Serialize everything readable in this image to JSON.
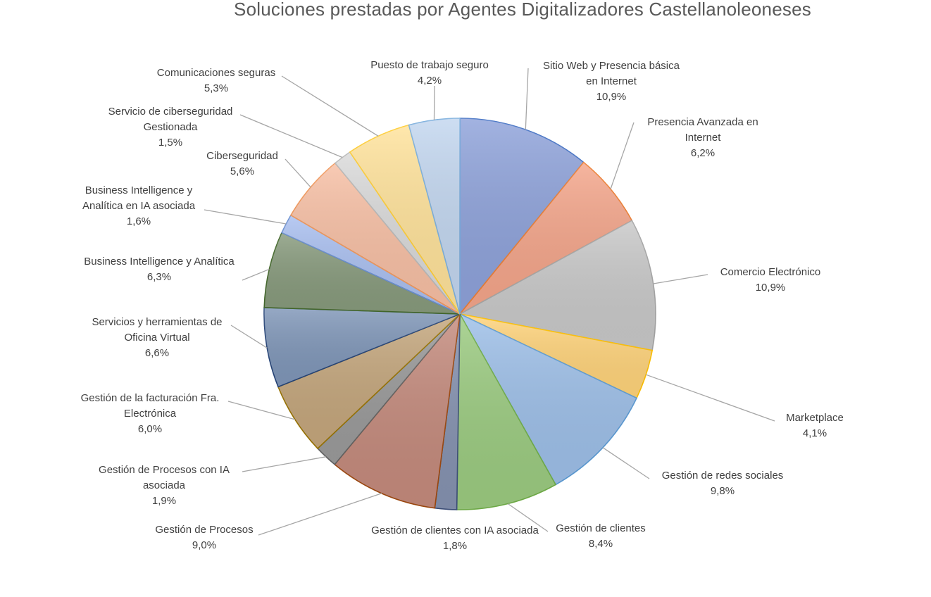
{
  "chart_data": {
    "type": "pie",
    "title": "Soluciones prestadas por Agentes Digitalizadores Castellanoleoneses",
    "legend": "none",
    "slices": [
      {
        "label": "Sitio Web y Presencia básica en Internet",
        "value": 10.9,
        "display": "10,9%",
        "color": "#8ea2da",
        "edge": "#4472c4"
      },
      {
        "label": "Presencia Avanzada en Internet",
        "value": 6.2,
        "display": "6,2%",
        "color": "#f4a58a",
        "edge": "#ed7d31"
      },
      {
        "label": "Comercio Electrónico",
        "value": 10.9,
        "display": "10,9%",
        "color": "#c8c8c8",
        "edge": "#a5a5a5"
      },
      {
        "label": "Marketplace",
        "value": 4.1,
        "display": "4,1%",
        "color": "#ffd37a",
        "edge": "#ffc000"
      },
      {
        "label": "Gestión de redes sociales",
        "value": 9.8,
        "display": "9,8%",
        "color": "#9dbfe8",
        "edge": "#5b9bd5"
      },
      {
        "label": "Gestión de clientes",
        "value": 8.4,
        "display": "8,4%",
        "color": "#9bcb80",
        "edge": "#70ad47"
      },
      {
        "label": "Gestión de clientes con IA asociada",
        "value": 1.8,
        "display": "1,8%",
        "color": "#8592b0",
        "edge": "#3d4f7a"
      },
      {
        "label": "Gestión de Procesos",
        "value": 9.0,
        "display": "9,0%",
        "color": "#c48a7c",
        "edge": "#9e480e"
      },
      {
        "label": "Gestión de Procesos con IA asociada",
        "value": 1.9,
        "display": "1,9%",
        "color": "#9a9a9a",
        "edge": "#636363"
      },
      {
        "label": "Gestión de la facturación Fra. Electrónica",
        "value": 6.0,
        "display": "6,0%",
        "color": "#c4a67c",
        "edge": "#997300"
      },
      {
        "label": "Servicios y herramientas de Oficina Virtual",
        "value": 6.6,
        "display": "6,6%",
        "color": "#7f96b8",
        "edge": "#264478"
      },
      {
        "label": "Business Intelligence y Analítica",
        "value": 6.3,
        "display": "6,3%",
        "color": "#879a7c",
        "edge": "#43682b"
      },
      {
        "label": "Business Intelligence y Analítica en IA asociada",
        "value": 1.6,
        "display": "1,6%",
        "color": "#a9bff0",
        "edge": "#698ed0"
      },
      {
        "label": "Ciberseguridad",
        "value": 5.6,
        "display": "5,6%",
        "color": "#f7bfa4",
        "edge": "#f1975a"
      },
      {
        "label": "Servicio de ciberseguridad Gestionada",
        "value": 1.5,
        "display": "1,5%",
        "color": "#d9d9d9",
        "edge": "#b7b7b7"
      },
      {
        "label": "Comunicaciones seguras",
        "value": 5.3,
        "display": "5,3%",
        "color": "#ffe29a",
        "edge": "#ffcd33"
      },
      {
        "label": "Puesto de trabajo seguro",
        "value": 4.2,
        "display": "4,2%",
        "color": "#c2d6ef",
        "edge": "#7cafdd"
      }
    ]
  }
}
